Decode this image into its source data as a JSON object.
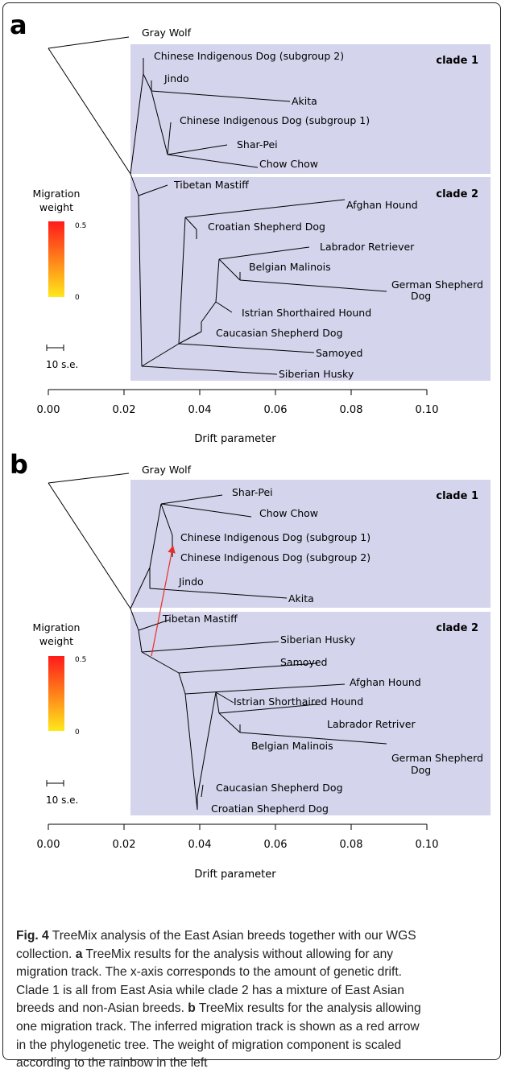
{
  "panels": [
    {
      "letter": "a",
      "outgroup": "Gray Wolf",
      "clade1_label": "clade 1",
      "clade2_label": "clade 2",
      "legend": {
        "title_line1": "Migration",
        "title_line2": "weight",
        "max": "0.5",
        "min": "0"
      },
      "scale_label": "10 s.e.",
      "leaves": [
        "Chinese Indigenous Dog (subgroup 2)",
        "Jindo",
        "Akita",
        "Chinese Indigenous Dog (subgroup 1)",
        "Shar-Pei",
        "Chow Chow",
        "Tibetan Mastiff",
        "Afghan Hound",
        "Croatian Shepherd Dog",
        "Labrador Retriever",
        "Belgian Malinois",
        "German Shepherd",
        "Dog",
        "Istrian Shorthaired Hound",
        "Caucasian Shepherd Dog",
        "Samoyed",
        "Siberian Husky"
      ],
      "x_ticks": [
        "0.00",
        "0.02",
        "0.04",
        "0.06",
        "0.08",
        "0.10"
      ],
      "xlabel": "Drift parameter"
    },
    {
      "letter": "b",
      "outgroup": "Gray Wolf",
      "clade1_label": "clade 1",
      "clade2_label": "clade 2",
      "legend": {
        "title_line1": "Migration",
        "title_line2": "weight",
        "max": "0.5",
        "min": "0"
      },
      "scale_label": "10 s.e.",
      "leaves": [
        "Shar-Pei",
        "Chow Chow",
        "Chinese Indigenous Dog (subgroup 1)",
        "Chinese Indigenous Dog (subgroup 2)",
        "Jindo",
        "Akita",
        "Tibetan Mastiff",
        "Siberian Husky",
        "Samoyed",
        "Afghan Hound",
        "Istrian Shorthaired Hound",
        "Labrador Retriver",
        "Belgian Malinois",
        "German Shepherd",
        "Dog",
        "Caucasian Shepherd Dog",
        "Croatian Shepherd Dog"
      ],
      "x_ticks": [
        "0.00",
        "0.02",
        "0.04",
        "0.06",
        "0.08",
        "0.10"
      ],
      "xlabel": "Drift parameter"
    }
  ],
  "caption": {
    "fig_label": "Fig. 4",
    "line1_rest": " TreeMix analysis of the East Asian breeds together with our WGS",
    "line2": "collection. ",
    "a_label": "a",
    "line2_rest": " TreeMix results for the analysis without allowing for any",
    "line3": "migration track. The x-axis corresponds to the amount of genetic drift.",
    "line4": "Clade 1 is all from East Asia while clade 2 has a mixture of East Asian",
    "line5": "breeds and non-Asian breeds. ",
    "b_label": "b",
    "line5_rest": " TreeMix results for the analysis allowing",
    "line6": "one migration track. The inferred migration track is shown as a red arrow",
    "line7": "in the phylogenetic tree. The weight of migration component is scaled",
    "line8": "according to the rainbow in the left"
  },
  "colors": {
    "clade_bg": "#d4d4ec",
    "migration_arrow": "#e8302a",
    "gradient_top": "#ff1a1a",
    "gradient_bottom": "#ffe81a"
  }
}
